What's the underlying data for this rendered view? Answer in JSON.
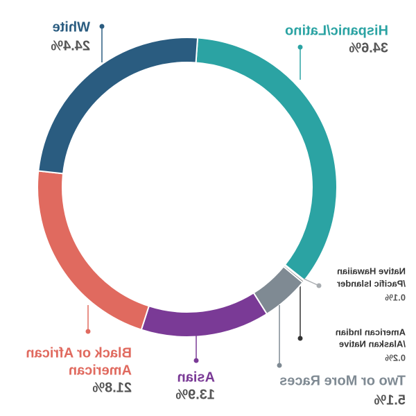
{
  "chart_data": {
    "type": "donut",
    "series": [
      {
        "name_lines": [
          "Hispanic/Latino"
        ],
        "value": 34.6,
        "value_label": "34.6%",
        "color": "#2ba3a3"
      },
      {
        "name_lines": [
          "Native Hawaiian",
          "/Pacific Islander"
        ],
        "value": 0.1,
        "value_label": "0.1%",
        "color": "#a9adb1"
      },
      {
        "name_lines": [
          "American Indian",
          "/Alaskan Native"
        ],
        "value": 0.2,
        "value_label": "0.2%",
        "color": "#333333"
      },
      {
        "name_lines": [
          "Two or More Races"
        ],
        "value": 5.1,
        "value_label": "5.1%",
        "color": "#7f8a93"
      },
      {
        "name_lines": [
          "Asian"
        ],
        "value": 13.9,
        "value_label": "13.9%",
        "color": "#7a3a96"
      },
      {
        "name_lines": [
          "Black or African",
          "American"
        ],
        "value": 21.8,
        "value_label": "21.8%",
        "color": "#e06a5f"
      },
      {
        "name_lines": [
          "White"
        ],
        "value": 24.4,
        "value_label": "24.4%",
        "color": "#2a5c80"
      }
    ]
  }
}
